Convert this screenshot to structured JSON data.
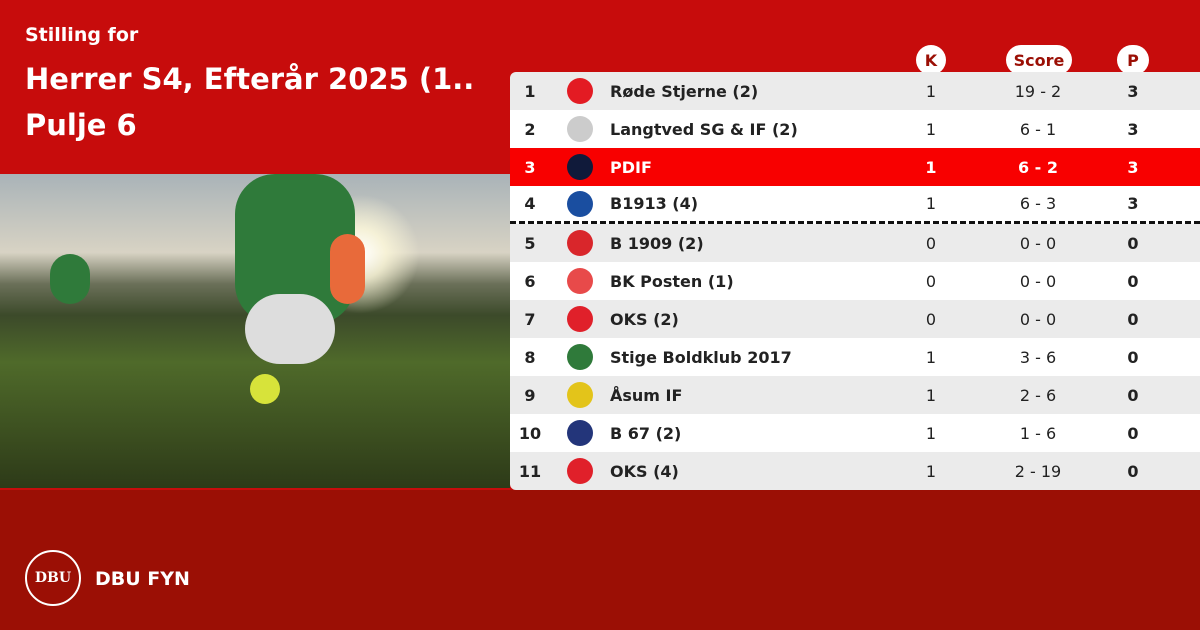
{
  "header": {
    "subtitle": "Stilling for",
    "title": "Herrer S4, Efterår 2025 (1..",
    "pool": "Pulje 6"
  },
  "columns": {
    "k": "K",
    "score": "Score",
    "p": "P"
  },
  "colors": {
    "top": "#c70c0c",
    "bottom": "#9b0f05",
    "highlight": "#f80000"
  },
  "rows": [
    {
      "pos": "1",
      "team": "Røde Stjerne (2)",
      "k": "1",
      "score": "19 - 2",
      "p": "3",
      "logo": "#e31b23"
    },
    {
      "pos": "2",
      "team": "Langtved SG  &  IF (2)",
      "k": "1",
      "score": "6 - 1",
      "p": "3",
      "logo": "#cccccc"
    },
    {
      "pos": "3",
      "team": "PDIF",
      "k": "1",
      "score": "6 - 2",
      "p": "3",
      "logo": "#101a3a",
      "highlight": true
    },
    {
      "pos": "4",
      "team": "B1913 (4)",
      "k": "1",
      "score": "6 - 3",
      "p": "3",
      "logo": "#1a4ea0"
    },
    {
      "pos": "5",
      "team": "B 1909 (2)",
      "k": "0",
      "score": "0 - 0",
      "p": "0",
      "logo": "#d9262b"
    },
    {
      "pos": "6",
      "team": "BK Posten (1)",
      "k": "0",
      "score": "0 - 0",
      "p": "0",
      "logo": "#e84a4a"
    },
    {
      "pos": "7",
      "team": "OKS (2)",
      "k": "0",
      "score": "0 - 0",
      "p": "0",
      "logo": "#e0202a"
    },
    {
      "pos": "8",
      "team": "Stige Boldklub 2017",
      "k": "1",
      "score": "3 - 6",
      "p": "0",
      "logo": "#2f7a3a"
    },
    {
      "pos": "9",
      "team": "Åsum IF",
      "k": "1",
      "score": "2 - 6",
      "p": "0",
      "logo": "#e3c41a"
    },
    {
      "pos": "10",
      "team": "B 67 (2)",
      "k": "1",
      "score": "1 - 6",
      "p": "0",
      "logo": "#23357a"
    },
    {
      "pos": "11",
      "team": "OKS (4)",
      "k": "1",
      "score": "2 - 19",
      "p": "0",
      "logo": "#e0202a"
    }
  ],
  "footer": {
    "brand": "DBU FYN",
    "logo_text": "DBU"
  }
}
